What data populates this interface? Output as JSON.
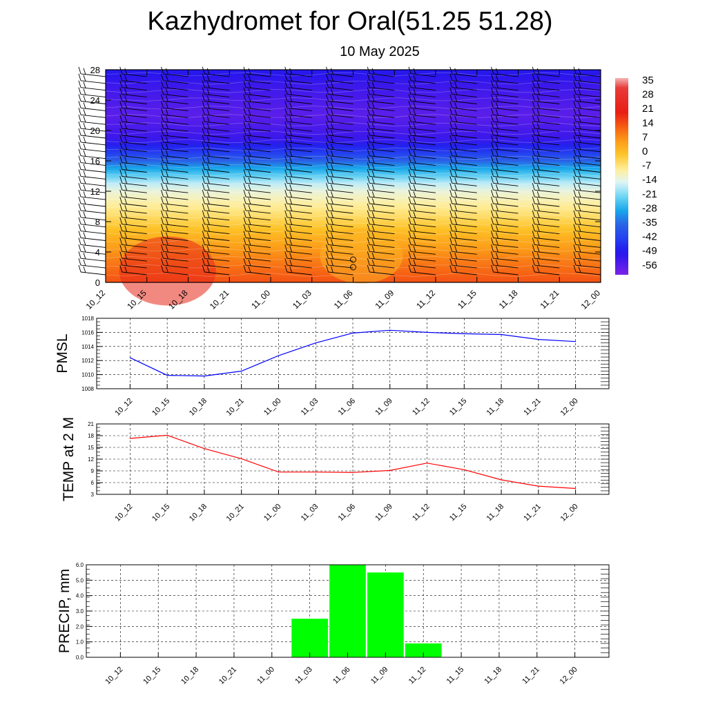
{
  "title": "Kazhydromet for Oral(51.25 51.28)",
  "subtitle": "10 May 2025",
  "chart_data": [
    {
      "type": "heatmap",
      "description_type": "time-height cross section with wind barbs",
      "x_categories": [
        "10_12",
        "10_15",
        "10_18",
        "10_21",
        "11_00",
        "11_03",
        "11_06",
        "11_09",
        "11_12",
        "11_15",
        "11_18",
        "11_21",
        "12_00"
      ],
      "y_ticks": [
        0,
        4,
        8,
        12,
        16,
        20,
        24,
        28
      ],
      "ylim": [
        0,
        28
      ],
      "colorbar_labels": [
        35,
        28,
        21,
        14,
        7,
        0,
        -7,
        -14,
        -21,
        -28,
        -35,
        -42,
        -49,
        -56
      ],
      "colormap_anchors": [
        {
          "value": 38,
          "color": "#f4b4b4"
        },
        {
          "value": 33,
          "color": "#e83a3a"
        },
        {
          "value": 21,
          "color": "#e81e14"
        },
        {
          "value": 14,
          "color": "#f55a14"
        },
        {
          "value": 7,
          "color": "#fc9a18"
        },
        {
          "value": 0,
          "color": "#fdc428"
        },
        {
          "value": -8,
          "color": "#fff0a0"
        },
        {
          "value": -14,
          "color": "#dff5f8"
        },
        {
          "value": -21,
          "color": "#6ed6f3"
        },
        {
          "value": -28,
          "color": "#18a7ea"
        },
        {
          "value": -35,
          "color": "#2a62e6"
        },
        {
          "value": -42,
          "color": "#2440f0"
        },
        {
          "value": -49,
          "color": "#2414ec"
        },
        {
          "value": -60,
          "color": "#7a24e8"
        }
      ]
    },
    {
      "type": "line",
      "ylabel": "PMSL",
      "categories": [
        "10_12",
        "10_15",
        "10_18",
        "10_21",
        "11_00",
        "11_03",
        "11_06",
        "11_09",
        "11_12",
        "11_15",
        "11_18",
        "11_21",
        "12_00"
      ],
      "values": [
        1012.4,
        1009.9,
        1009.8,
        1010.5,
        1012.7,
        1014.5,
        1015.9,
        1016.3,
        1016.0,
        1015.8,
        1015.7,
        1015.0,
        1014.7
      ],
      "ylim": [
        1008,
        1018
      ],
      "yticks": [
        1008,
        1010,
        1012,
        1014,
        1016,
        1018
      ],
      "color": "#0000ff"
    },
    {
      "type": "line",
      "ylabel": "TEMP at 2 M",
      "categories": [
        "10_12",
        "10_15",
        "10_18",
        "10_21",
        "11_00",
        "11_03",
        "11_06",
        "11_09",
        "11_12",
        "11_15",
        "11_18",
        "11_21",
        "12_00"
      ],
      "values": [
        17.3,
        18.1,
        14.7,
        12.1,
        8.7,
        8.7,
        8.6,
        9.1,
        11.0,
        9.3,
        6.7,
        5.1,
        4.5
      ],
      "ylim": [
        3,
        21
      ],
      "yticks": [
        3,
        6,
        9,
        12,
        15,
        18,
        21
      ],
      "color": "#ff0000"
    },
    {
      "type": "bar",
      "ylabel": "PRECIP, mm",
      "categories": [
        "10_12",
        "10_15",
        "10_18",
        "10_21",
        "11_00",
        "11_03",
        "11_06",
        "11_09",
        "11_12",
        "11_15",
        "11_18",
        "11_21",
        "12_00"
      ],
      "values": [
        0,
        0,
        0,
        0,
        0,
        2.5,
        6.0,
        5.5,
        0.9,
        0,
        0,
        0,
        0
      ],
      "ylim": [
        0,
        6
      ],
      "ytick_labels": [
        "0.0",
        "1.0",
        "2.0",
        "3.0",
        "4.0",
        "5.0",
        "6.0"
      ],
      "color": "#00ff00"
    }
  ]
}
